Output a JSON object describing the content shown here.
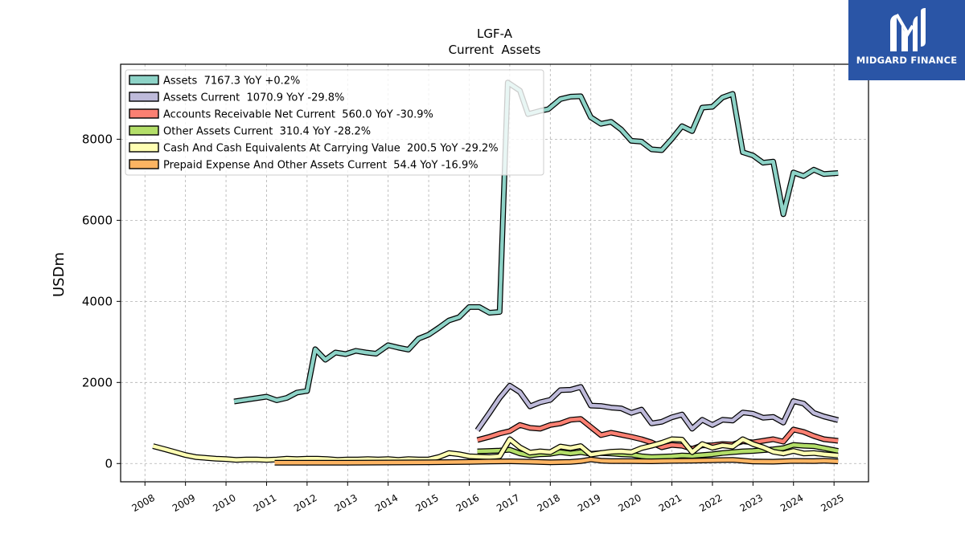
{
  "chart_data": {
    "type": "line",
    "title": "LGF-A",
    "subtitle": "Current  Assets",
    "ylabel": "USDm",
    "xlabel": "",
    "xlim": [
      2007.4,
      2025.85
    ],
    "ylim": [
      -450,
      9850
    ],
    "yticks": [
      0,
      2000,
      4000,
      6000,
      8000
    ],
    "xticks": [
      2008,
      2009,
      2010,
      2011,
      2012,
      2013,
      2014,
      2015,
      2016,
      2017,
      2018,
      2019,
      2020,
      2021,
      2022,
      2023,
      2024,
      2025
    ],
    "grid": true,
    "legend_position": "top-left",
    "series": [
      {
        "name": "Assets  7167.3 YoY +0.2%",
        "color": "#8dd3c7",
        "points": [
          [
            2010.2,
            1530
          ],
          [
            2011.0,
            1650
          ],
          [
            2011.25,
            1560
          ],
          [
            2011.5,
            1620
          ],
          [
            2011.75,
            1750
          ],
          [
            2012.0,
            1790
          ],
          [
            2012.2,
            2820
          ],
          [
            2012.45,
            2560
          ],
          [
            2012.7,
            2740
          ],
          [
            2012.95,
            2700
          ],
          [
            2013.2,
            2780
          ],
          [
            2013.45,
            2740
          ],
          [
            2013.7,
            2710
          ],
          [
            2014.0,
            2920
          ],
          [
            2014.25,
            2860
          ],
          [
            2014.5,
            2810
          ],
          [
            2014.75,
            3080
          ],
          [
            2015.0,
            3180
          ],
          [
            2015.25,
            3350
          ],
          [
            2015.5,
            3530
          ],
          [
            2015.75,
            3610
          ],
          [
            2016.0,
            3860
          ],
          [
            2016.25,
            3860
          ],
          [
            2016.5,
            3720
          ],
          [
            2016.75,
            3740
          ],
          [
            2016.95,
            9400
          ],
          [
            2017.25,
            9200
          ],
          [
            2017.45,
            8620
          ],
          [
            2017.75,
            8700
          ],
          [
            2017.95,
            8740
          ],
          [
            2018.25,
            8990
          ],
          [
            2018.5,
            9050
          ],
          [
            2018.75,
            9060
          ],
          [
            2019.0,
            8540
          ],
          [
            2019.25,
            8380
          ],
          [
            2019.5,
            8430
          ],
          [
            2019.75,
            8240
          ],
          [
            2020.0,
            7960
          ],
          [
            2020.25,
            7940
          ],
          [
            2020.5,
            7750
          ],
          [
            2020.75,
            7730
          ],
          [
            2021.0,
            8010
          ],
          [
            2021.25,
            8320
          ],
          [
            2021.5,
            8200
          ],
          [
            2021.75,
            8780
          ],
          [
            2022.0,
            8800
          ],
          [
            2022.25,
            9030
          ],
          [
            2022.5,
            9120
          ],
          [
            2022.75,
            7680
          ],
          [
            2023.0,
            7600
          ],
          [
            2023.25,
            7420
          ],
          [
            2023.5,
            7450
          ],
          [
            2023.75,
            6150
          ],
          [
            2024.0,
            7180
          ],
          [
            2024.25,
            7090
          ],
          [
            2024.5,
            7250
          ],
          [
            2024.75,
            7140
          ],
          [
            2025.1,
            7167
          ]
        ]
      },
      {
        "name": "Assets Current  1070.9 YoY -29.8%",
        "color": "#bebada",
        "points": [
          [
            2016.2,
            820
          ],
          [
            2016.5,
            1250
          ],
          [
            2016.75,
            1620
          ],
          [
            2017.0,
            1920
          ],
          [
            2017.25,
            1760
          ],
          [
            2017.5,
            1410
          ],
          [
            2017.75,
            1510
          ],
          [
            2018.0,
            1570
          ],
          [
            2018.25,
            1810
          ],
          [
            2018.5,
            1820
          ],
          [
            2018.75,
            1890
          ],
          [
            2019.0,
            1430
          ],
          [
            2019.25,
            1420
          ],
          [
            2019.5,
            1380
          ],
          [
            2019.75,
            1360
          ],
          [
            2020.0,
            1250
          ],
          [
            2020.25,
            1330
          ],
          [
            2020.5,
            990
          ],
          [
            2020.75,
            1030
          ],
          [
            2021.0,
            1140
          ],
          [
            2021.25,
            1210
          ],
          [
            2021.5,
            860
          ],
          [
            2021.75,
            1080
          ],
          [
            2022.0,
            950
          ],
          [
            2022.25,
            1080
          ],
          [
            2022.5,
            1060
          ],
          [
            2022.75,
            1260
          ],
          [
            2023.0,
            1230
          ],
          [
            2023.25,
            1130
          ],
          [
            2023.5,
            1150
          ],
          [
            2023.75,
            1010
          ],
          [
            2024.0,
            1540
          ],
          [
            2024.25,
            1480
          ],
          [
            2024.5,
            1250
          ],
          [
            2024.75,
            1160
          ],
          [
            2025.1,
            1071
          ]
        ]
      },
      {
        "name": "Accounts Receivable Net Current  560.0 YoY -30.9%",
        "color": "#fb8072",
        "points": [
          [
            2016.2,
            580
          ],
          [
            2016.5,
            660
          ],
          [
            2016.75,
            740
          ],
          [
            2017.0,
            800
          ],
          [
            2017.25,
            950
          ],
          [
            2017.5,
            880
          ],
          [
            2017.75,
            860
          ],
          [
            2018.0,
            950
          ],
          [
            2018.25,
            990
          ],
          [
            2018.5,
            1080
          ],
          [
            2018.75,
            1100
          ],
          [
            2019.0,
            900
          ],
          [
            2019.25,
            700
          ],
          [
            2019.5,
            760
          ],
          [
            2019.75,
            710
          ],
          [
            2020.0,
            660
          ],
          [
            2020.25,
            600
          ],
          [
            2020.5,
            520
          ],
          [
            2020.75,
            400
          ],
          [
            2021.0,
            460
          ],
          [
            2021.25,
            440
          ],
          [
            2021.5,
            360
          ],
          [
            2021.75,
            450
          ],
          [
            2022.0,
            450
          ],
          [
            2022.25,
            480
          ],
          [
            2022.5,
            470
          ],
          [
            2022.75,
            550
          ],
          [
            2023.0,
            520
          ],
          [
            2023.25,
            560
          ],
          [
            2023.5,
            600
          ],
          [
            2023.75,
            540
          ],
          [
            2024.0,
            840
          ],
          [
            2024.25,
            780
          ],
          [
            2024.5,
            680
          ],
          [
            2024.75,
            600
          ],
          [
            2025.1,
            560
          ]
        ]
      },
      {
        "name": "Other Assets Current  310.4 YoY -28.2%",
        "color": "#b3de69",
        "points": [
          [
            2016.2,
            300
          ],
          [
            2016.5,
            310
          ],
          [
            2016.75,
            320
          ],
          [
            2017.0,
            340
          ],
          [
            2017.25,
            250
          ],
          [
            2017.5,
            200
          ],
          [
            2017.75,
            230
          ],
          [
            2018.0,
            240
          ],
          [
            2018.25,
            280
          ],
          [
            2018.5,
            250
          ],
          [
            2018.75,
            280
          ],
          [
            2019.0,
            240
          ],
          [
            2019.25,
            260
          ],
          [
            2019.5,
            250
          ],
          [
            2019.75,
            230
          ],
          [
            2020.0,
            220
          ],
          [
            2020.25,
            180
          ],
          [
            2020.5,
            160
          ],
          [
            2020.75,
            170
          ],
          [
            2021.0,
            180
          ],
          [
            2021.25,
            200
          ],
          [
            2021.5,
            190
          ],
          [
            2021.75,
            210
          ],
          [
            2022.0,
            230
          ],
          [
            2022.25,
            260
          ],
          [
            2022.5,
            280
          ],
          [
            2022.75,
            300
          ],
          [
            2023.0,
            310
          ],
          [
            2023.25,
            330
          ],
          [
            2023.5,
            350
          ],
          [
            2023.75,
            380
          ],
          [
            2024.0,
            460
          ],
          [
            2024.25,
            440
          ],
          [
            2024.5,
            430
          ],
          [
            2024.75,
            380
          ],
          [
            2025.1,
            310
          ]
        ]
      },
      {
        "name": "Cash And Cash Equivalents At Carrying Value  200.5 YoY -29.2%",
        "color": "#ffffb3",
        "points": [
          [
            2008.2,
            430
          ],
          [
            2008.5,
            350
          ],
          [
            2008.75,
            280
          ],
          [
            2009.0,
            210
          ],
          [
            2009.25,
            160
          ],
          [
            2009.5,
            140
          ],
          [
            2009.75,
            120
          ],
          [
            2010.0,
            110
          ],
          [
            2010.25,
            90
          ],
          [
            2010.5,
            100
          ],
          [
            2010.75,
            100
          ],
          [
            2011.0,
            90
          ],
          [
            2011.25,
            100
          ],
          [
            2011.5,
            120
          ],
          [
            2011.75,
            110
          ],
          [
            2012.0,
            120
          ],
          [
            2012.25,
            120
          ],
          [
            2012.5,
            110
          ],
          [
            2012.75,
            90
          ],
          [
            2013.0,
            100
          ],
          [
            2013.25,
            100
          ],
          [
            2013.5,
            110
          ],
          [
            2013.75,
            100
          ],
          [
            2014.0,
            110
          ],
          [
            2014.25,
            90
          ],
          [
            2014.5,
            110
          ],
          [
            2014.75,
            100
          ],
          [
            2015.0,
            100
          ],
          [
            2015.25,
            160
          ],
          [
            2015.5,
            260
          ],
          [
            2015.75,
            230
          ],
          [
            2016.0,
            180
          ],
          [
            2016.25,
            170
          ],
          [
            2016.5,
            160
          ],
          [
            2016.75,
            180
          ],
          [
            2017.0,
            600
          ],
          [
            2017.25,
            400
          ],
          [
            2017.5,
            270
          ],
          [
            2017.75,
            300
          ],
          [
            2018.0,
            280
          ],
          [
            2018.25,
            420
          ],
          [
            2018.5,
            380
          ],
          [
            2018.75,
            430
          ],
          [
            2019.0,
            220
          ],
          [
            2019.25,
            260
          ],
          [
            2019.5,
            290
          ],
          [
            2019.75,
            300
          ],
          [
            2020.0,
            280
          ],
          [
            2020.25,
            380
          ],
          [
            2020.5,
            440
          ],
          [
            2020.75,
            510
          ],
          [
            2021.0,
            600
          ],
          [
            2021.25,
            590
          ],
          [
            2021.5,
            280
          ],
          [
            2021.75,
            480
          ],
          [
            2022.0,
            390
          ],
          [
            2022.25,
            450
          ],
          [
            2022.5,
            420
          ],
          [
            2022.75,
            600
          ],
          [
            2023.0,
            480
          ],
          [
            2023.25,
            400
          ],
          [
            2023.5,
            290
          ],
          [
            2023.75,
            250
          ],
          [
            2024.0,
            310
          ],
          [
            2024.25,
            250
          ],
          [
            2024.5,
            260
          ],
          [
            2024.75,
            230
          ],
          [
            2025.1,
            200
          ]
        ]
      },
      {
        "name": "Prepaid Expense And Other Assets Current  54.4 YoY -16.9%",
        "color": "#fdb462",
        "points": [
          [
            2011.2,
            20
          ],
          [
            2012.0,
            20
          ],
          [
            2013.0,
            20
          ],
          [
            2014.0,
            25
          ],
          [
            2015.0,
            30
          ],
          [
            2016.0,
            40
          ],
          [
            2016.5,
            50
          ],
          [
            2017.0,
            55
          ],
          [
            2017.5,
            45
          ],
          [
            2018.0,
            30
          ],
          [
            2018.5,
            40
          ],
          [
            2018.75,
            60
          ],
          [
            2019.0,
            100
          ],
          [
            2019.25,
            70
          ],
          [
            2019.5,
            60
          ],
          [
            2020.0,
            60
          ],
          [
            2020.5,
            55
          ],
          [
            2021.0,
            65
          ],
          [
            2021.5,
            70
          ],
          [
            2022.0,
            80
          ],
          [
            2022.5,
            90
          ],
          [
            2022.75,
            70
          ],
          [
            2023.0,
            50
          ],
          [
            2023.5,
            45
          ],
          [
            2024.0,
            65
          ],
          [
            2024.5,
            60
          ],
          [
            2024.75,
            70
          ],
          [
            2025.1,
            54
          ]
        ]
      }
    ]
  },
  "logo": {
    "name": "MIDGARD FINANCE"
  }
}
